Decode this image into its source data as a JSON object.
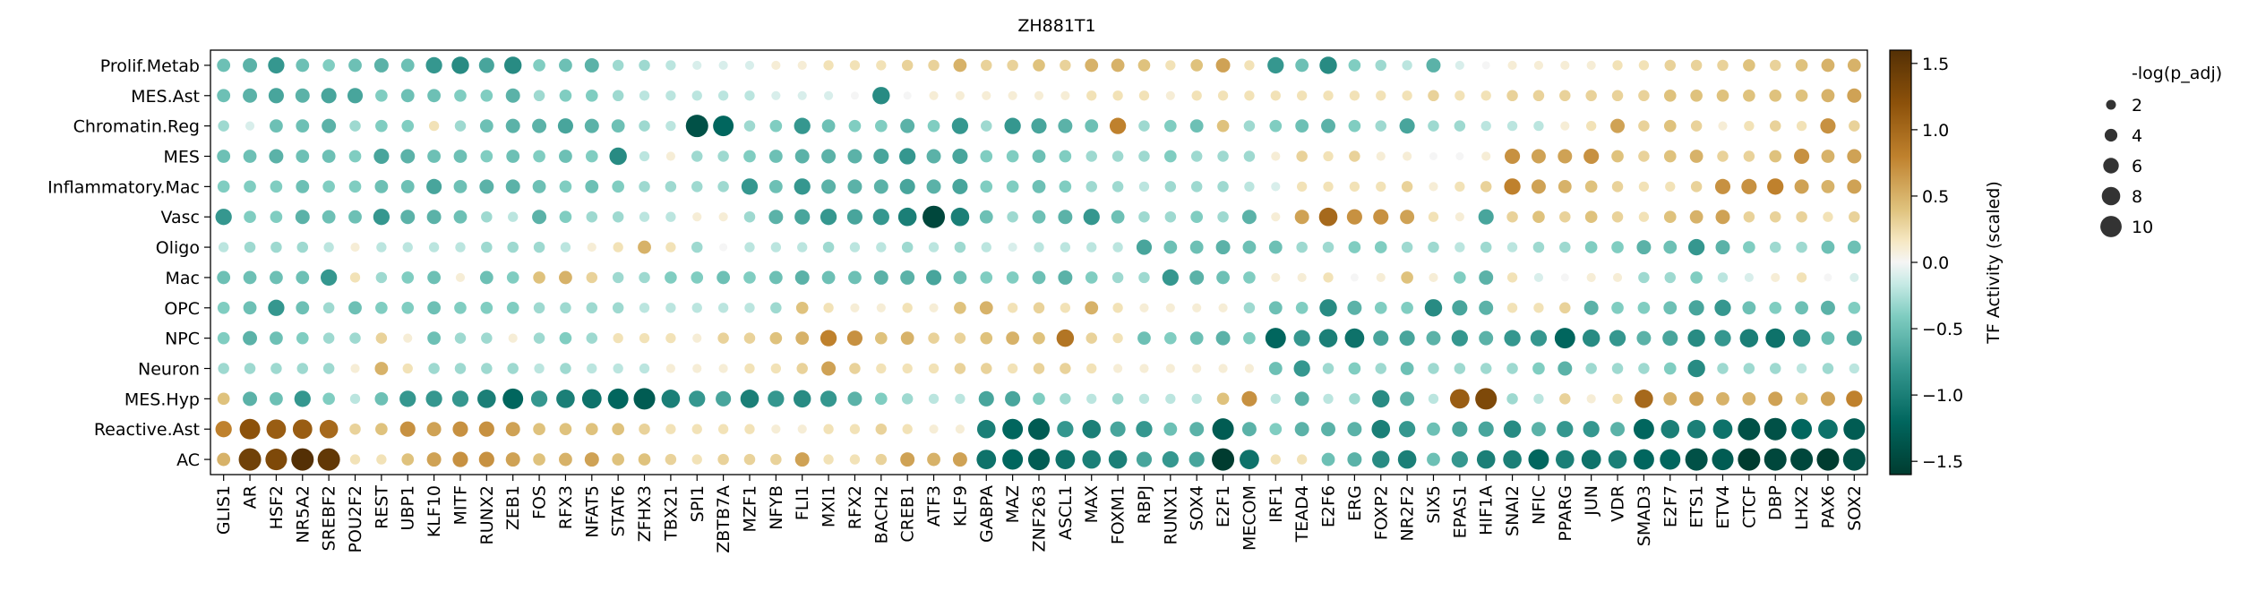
{
  "chart_data": {
    "type": "heatmap",
    "subtype": "dotplot",
    "title": "ZH881T1",
    "rows": [
      "Prolif.Metab",
      "MES.Ast",
      "Chromatin.Reg",
      "MES",
      "Inflammatory.Mac",
      "Vasc",
      "Oligo",
      "Mac",
      "OPC",
      "NPC",
      "Neuron",
      "MES.Hyp",
      "Reactive.Ast",
      "AC"
    ],
    "columns": [
      "GLIS1",
      "AR",
      "HSF2",
      "NR5A2",
      "SREBF2",
      "POU2F2",
      "REST",
      "UBP1",
      "KLF10",
      "MITF",
      "RUNX2",
      "ZEB1",
      "FOS",
      "RFX3",
      "NFAT5",
      "STAT6",
      "ZFHX3",
      "TBX21",
      "SPI1",
      "ZBTB7A",
      "MZF1",
      "NFYB",
      "FLI1",
      "MXI1",
      "RFX2",
      "BACH2",
      "CREB1",
      "ATF3",
      "KLF9",
      "GABPA",
      "MAZ",
      "ZNF263",
      "ASCL1",
      "MAX",
      "FOXM1",
      "RBPJ",
      "RUNX1",
      "SOX4",
      "E2F1",
      "MECOM",
      "IRF1",
      "TEAD4",
      "E2F6",
      "ERG",
      "FOXP2",
      "NR2F2",
      "SIX5",
      "EPAS1",
      "HIF1A",
      "SNAI2",
      "NFIC",
      "PPARG",
      "JUN",
      "VDR",
      "SMAD3",
      "E2F7",
      "ETS1",
      "ETV4",
      "CTCF",
      "DBP",
      "LHX2",
      "PAX6",
      "SOX2"
    ],
    "values": [
      [
        -0.5,
        -0.6,
        -0.8,
        -0.5,
        -0.4,
        -0.5,
        -0.6,
        -0.5,
        -0.8,
        -0.9,
        -0.7,
        -0.9,
        -0.4,
        -0.5,
        -0.6,
        -0.3,
        -0.3,
        -0.2,
        -0.1,
        -0.1,
        -0.1,
        0.1,
        0.1,
        0.2,
        0.2,
        0.2,
        0.3,
        0.3,
        0.5,
        0.3,
        0.3,
        0.4,
        0.3,
        0.5,
        0.5,
        0.4,
        0.2,
        0.4,
        0.6,
        0.2,
        -0.8,
        -0.5,
        -0.9,
        -0.4,
        -0.3,
        -0.2,
        -0.6,
        -0.1,
        0.0,
        0.1,
        0.1,
        0.1,
        0.1,
        0.2,
        0.2,
        0.3,
        0.3,
        0.3,
        0.4,
        0.3,
        0.4,
        0.5,
        0.5
      ],
      [
        -0.5,
        -0.6,
        -0.7,
        -0.6,
        -0.7,
        -0.7,
        -0.4,
        -0.5,
        -0.5,
        -0.4,
        -0.4,
        -0.6,
        -0.3,
        -0.4,
        -0.4,
        -0.3,
        -0.2,
        -0.2,
        -0.2,
        -0.2,
        -0.2,
        -0.1,
        -0.1,
        -0.1,
        0.0,
        -0.9,
        0.0,
        0.1,
        0.1,
        0.1,
        0.1,
        0.1,
        0.1,
        0.2,
        0.2,
        0.2,
        0.1,
        0.2,
        0.2,
        0.2,
        0.2,
        0.2,
        0.2,
        0.2,
        0.2,
        0.2,
        0.3,
        0.2,
        0.2,
        0.3,
        0.3,
        0.3,
        0.3,
        0.3,
        0.3,
        0.4,
        0.4,
        0.4,
        0.4,
        0.4,
        0.4,
        0.5,
        0.6
      ],
      [
        -0.3,
        -0.1,
        -0.5,
        -0.5,
        -0.6,
        -0.3,
        -0.4,
        -0.4,
        0.2,
        -0.3,
        -0.5,
        -0.6,
        -0.6,
        -0.7,
        -0.6,
        -0.5,
        -0.3,
        -0.2,
        -1.4,
        -1.2,
        -0.3,
        -0.4,
        -0.8,
        -0.5,
        -0.4,
        -0.4,
        -0.6,
        -0.4,
        -0.8,
        -0.3,
        -0.8,
        -0.7,
        -0.6,
        -0.5,
        0.8,
        -0.3,
        -0.4,
        -0.5,
        0.4,
        -0.3,
        -0.4,
        -0.5,
        -0.6,
        -0.4,
        -0.3,
        -0.7,
        -0.3,
        -0.3,
        -0.2,
        -0.2,
        -0.2,
        0.1,
        0.2,
        0.6,
        0.3,
        0.4,
        0.3,
        0.1,
        0.2,
        0.3,
        0.2,
        0.7,
        0.3
      ],
      [
        -0.5,
        -0.5,
        -0.6,
        -0.5,
        -0.5,
        -0.4,
        -0.7,
        -0.6,
        -0.5,
        -0.5,
        -0.4,
        -0.5,
        -0.4,
        -0.5,
        -0.4,
        -0.9,
        -0.2,
        0.1,
        -0.3,
        -0.3,
        -0.4,
        -0.5,
        -0.6,
        -0.6,
        -0.6,
        -0.7,
        -0.8,
        -0.6,
        -0.7,
        -0.4,
        -0.4,
        -0.5,
        -0.4,
        -0.3,
        -0.3,
        -0.3,
        -0.4,
        -0.3,
        -0.3,
        -0.3,
        0.1,
        0.3,
        0.2,
        0.3,
        0.1,
        0.1,
        0.0,
        0.0,
        0.1,
        0.7,
        0.6,
        0.6,
        0.7,
        0.4,
        0.3,
        0.4,
        0.5,
        0.3,
        0.3,
        0.4,
        0.7,
        0.5,
        0.6
      ],
      [
        -0.4,
        -0.4,
        -0.4,
        -0.5,
        -0.4,
        -0.4,
        -0.5,
        -0.5,
        -0.7,
        -0.5,
        -0.6,
        -0.6,
        -0.5,
        -0.4,
        -0.5,
        -0.4,
        -0.3,
        -0.3,
        -0.3,
        -0.3,
        -0.8,
        -0.5,
        -0.8,
        -0.6,
        -0.6,
        -0.6,
        -0.7,
        -0.6,
        -0.7,
        -0.4,
        -0.4,
        -0.5,
        -0.4,
        -0.3,
        -0.3,
        -0.2,
        -0.3,
        -0.3,
        -0.3,
        -0.2,
        -0.1,
        0.2,
        0.2,
        0.2,
        0.2,
        0.3,
        0.1,
        0.2,
        0.3,
        0.8,
        0.6,
        0.5,
        0.4,
        0.3,
        0.2,
        0.2,
        0.3,
        0.7,
        0.7,
        0.8,
        0.6,
        0.5,
        0.6
      ],
      [
        -0.8,
        -0.4,
        -0.4,
        -0.6,
        -0.5,
        -0.5,
        -0.8,
        -0.6,
        -0.6,
        -0.5,
        -0.3,
        -0.2,
        -0.6,
        -0.4,
        -0.3,
        -0.3,
        -0.2,
        -0.2,
        0.1,
        0.1,
        -0.3,
        -0.6,
        -0.7,
        -0.8,
        -0.7,
        -0.8,
        -1.0,
        -1.5,
        -1.0,
        -0.5,
        -0.3,
        -0.5,
        -0.6,
        -0.8,
        -0.5,
        -0.3,
        -0.3,
        -0.4,
        -0.3,
        -0.6,
        0.1,
        0.6,
        1.0,
        0.7,
        0.7,
        0.6,
        0.2,
        0.1,
        -0.7,
        0.3,
        0.4,
        0.3,
        0.4,
        0.3,
        0.2,
        0.4,
        0.5,
        0.6,
        0.3,
        0.3,
        0.3,
        0.2,
        0.3
      ],
      [
        -0.2,
        -0.3,
        -0.3,
        -0.3,
        -0.2,
        0.1,
        -0.2,
        -0.2,
        -0.2,
        -0.2,
        -0.3,
        -0.3,
        -0.3,
        -0.2,
        0.1,
        0.2,
        0.5,
        0.2,
        -0.3,
        0.0,
        -0.2,
        -0.2,
        -0.2,
        -0.3,
        -0.2,
        -0.2,
        -0.3,
        -0.2,
        -0.3,
        -0.2,
        -0.1,
        -0.2,
        -0.2,
        -0.2,
        -0.2,
        -0.7,
        -0.5,
        -0.5,
        -0.6,
        -0.5,
        -0.5,
        -0.3,
        -0.3,
        -0.4,
        -0.4,
        -0.3,
        -0.3,
        -0.2,
        -0.3,
        -0.2,
        -0.3,
        -0.3,
        -0.4,
        -0.4,
        -0.6,
        -0.5,
        -0.8,
        -0.6,
        -0.4,
        -0.3,
        -0.3,
        -0.5,
        -0.5
      ],
      [
        -0.5,
        -0.5,
        -0.5,
        -0.5,
        -0.8,
        0.2,
        -0.3,
        -0.4,
        -0.5,
        0.1,
        -0.5,
        -0.4,
        0.4,
        0.5,
        0.3,
        -0.3,
        -0.3,
        -0.4,
        -0.4,
        -0.5,
        -0.4,
        -0.5,
        -0.6,
        -0.5,
        -0.5,
        -0.6,
        -0.6,
        -0.7,
        -0.5,
        -0.4,
        -0.4,
        -0.5,
        -0.6,
        -0.4,
        -0.3,
        -0.3,
        -0.8,
        -0.6,
        -0.5,
        -0.4,
        0.1,
        0.1,
        0.2,
        0.0,
        0.1,
        0.4,
        0.1,
        -0.4,
        -0.6,
        0.2,
        -0.1,
        0.0,
        0.1,
        0.1,
        -0.3,
        -0.3,
        -0.4,
        -0.2,
        -0.1,
        0.1,
        0.2,
        0.0,
        -0.1
      ],
      [
        -0.4,
        -0.5,
        -0.8,
        -0.5,
        -0.3,
        -0.5,
        -0.4,
        -0.4,
        -0.5,
        -0.4,
        -0.4,
        -0.4,
        -0.3,
        -0.3,
        -0.3,
        -0.3,
        -0.2,
        -0.2,
        -0.2,
        -0.2,
        -0.2,
        -0.3,
        0.4,
        0.2,
        0.1,
        0.1,
        0.2,
        0.1,
        0.4,
        0.5,
        0.2,
        0.3,
        0.2,
        0.5,
        0.2,
        0.1,
        0.1,
        0.1,
        0.1,
        -0.3,
        -0.5,
        -0.4,
        -0.9,
        -0.6,
        -0.4,
        -0.4,
        -0.9,
        -0.7,
        -0.6,
        0.2,
        0.2,
        0.3,
        -0.6,
        -0.4,
        -0.4,
        -0.5,
        -0.7,
        -0.8,
        -0.5,
        -0.4,
        -0.5,
        -0.6,
        -0.4
      ],
      [
        -0.4,
        -0.6,
        -0.5,
        -0.4,
        -0.3,
        -0.3,
        0.3,
        0.1,
        -0.5,
        -0.3,
        -0.3,
        0.1,
        -0.3,
        -0.4,
        -0.3,
        0.2,
        0.2,
        0.2,
        0.1,
        0.3,
        0.3,
        0.4,
        0.5,
        0.8,
        0.7,
        0.4,
        0.5,
        0.3,
        0.3,
        0.4,
        0.5,
        0.4,
        0.9,
        0.3,
        0.2,
        -0.5,
        -0.4,
        -0.5,
        -0.6,
        -0.4,
        -1.2,
        -0.8,
        -1.0,
        -1.1,
        -0.7,
        -0.7,
        -0.6,
        -0.8,
        -0.6,
        -0.8,
        -0.8,
        -1.2,
        -0.9,
        -0.8,
        -0.6,
        -0.7,
        -0.9,
        -0.8,
        -1.0,
        -1.1,
        -0.9,
        -0.5,
        -0.7
      ],
      [
        -0.3,
        -0.3,
        -0.3,
        -0.3,
        -0.3,
        0.1,
        0.5,
        0.2,
        -0.3,
        -0.3,
        -0.3,
        -0.3,
        -0.2,
        -0.3,
        -0.2,
        -0.2,
        -0.2,
        0.1,
        0.1,
        0.1,
        0.2,
        0.2,
        0.3,
        0.6,
        0.3,
        0.2,
        0.2,
        0.2,
        0.3,
        0.3,
        0.2,
        0.3,
        0.3,
        0.2,
        0.1,
        0.1,
        0.1,
        0.1,
        0.1,
        0.1,
        -0.5,
        -0.8,
        -0.3,
        -0.4,
        -0.3,
        -0.5,
        -0.3,
        -0.3,
        -0.3,
        -0.3,
        -0.4,
        -0.6,
        -0.3,
        -0.3,
        -0.3,
        -0.4,
        -0.9,
        -0.3,
        -0.3,
        -0.3,
        -0.2,
        -0.3,
        -0.2
      ],
      [
        0.4,
        -0.6,
        -0.5,
        -0.8,
        -0.4,
        -0.2,
        -0.5,
        -0.8,
        -0.8,
        -0.8,
        -1.0,
        -1.2,
        -0.8,
        -1.0,
        -1.1,
        -1.2,
        -1.3,
        -1.0,
        -0.8,
        -0.7,
        -1.0,
        -0.8,
        -0.9,
        -0.8,
        -0.6,
        -0.4,
        -0.3,
        -0.2,
        -0.2,
        -0.7,
        -0.7,
        -0.4,
        -0.3,
        -0.2,
        -0.3,
        -0.2,
        -0.2,
        -0.2,
        0.4,
        0.7,
        -0.2,
        -0.6,
        -0.2,
        -0.3,
        -0.9,
        -0.6,
        -0.2,
        1.1,
        1.3,
        -0.3,
        -0.2,
        0.3,
        0.1,
        0.2,
        1.0,
        0.5,
        0.6,
        0.5,
        0.5,
        0.6,
        0.4,
        0.6,
        0.8
      ],
      [
        0.8,
        1.2,
        1.1,
        1.1,
        1.0,
        0.3,
        0.4,
        0.7,
        0.6,
        0.7,
        0.7,
        0.6,
        0.4,
        0.4,
        0.4,
        0.4,
        0.3,
        0.2,
        0.2,
        0.2,
        0.2,
        0.1,
        0.1,
        0.2,
        0.2,
        0.3,
        0.2,
        0.1,
        0.1,
        -1.0,
        -1.2,
        -1.3,
        -0.8,
        -1.0,
        -0.7,
        -0.8,
        -0.5,
        -0.6,
        -1.3,
        -0.6,
        -0.4,
        -0.6,
        -0.6,
        -0.6,
        -1.0,
        -0.8,
        -0.5,
        -0.7,
        -0.7,
        -0.9,
        -0.6,
        -0.8,
        -0.8,
        -0.6,
        -1.2,
        -1.0,
        -1.0,
        -1.1,
        -1.4,
        -1.4,
        -1.2,
        -1.1,
        -1.3
      ],
      [
        0.5,
        1.4,
        1.3,
        1.6,
        1.5,
        0.2,
        0.2,
        0.4,
        0.6,
        0.7,
        0.7,
        0.6,
        0.4,
        0.5,
        0.6,
        0.4,
        0.4,
        0.3,
        0.2,
        0.3,
        0.3,
        0.3,
        0.6,
        0.2,
        0.2,
        0.3,
        0.6,
        0.5,
        0.6,
        -1.1,
        -1.2,
        -1.3,
        -1.1,
        -1.0,
        -1.0,
        -0.7,
        -0.8,
        -0.7,
        -1.6,
        -1.1,
        0.2,
        0.2,
        -0.5,
        -0.6,
        -0.9,
        -1.0,
        -0.5,
        -0.8,
        -1.0,
        -1.0,
        -1.2,
        -1.0,
        -1.1,
        -1.0,
        -1.2,
        -1.2,
        -1.4,
        -1.3,
        -1.6,
        -1.5,
        -1.5,
        -1.6,
        -1.4
      ]
    ],
    "vmin": -1.6,
    "vmax": 1.6,
    "colorbar": {
      "label": "TF Activity (scaled)",
      "ticks": [
        "1.5",
        "1.0",
        "0.5",
        "0.0",
        "−0.5",
        "−1.0",
        "−1.5"
      ],
      "tick_values": [
        1.5,
        1.0,
        0.5,
        0.0,
        -0.5,
        -1.0,
        -1.5
      ]
    },
    "size_legend": {
      "title": "-log(p_adj)",
      "labels": [
        "2",
        "4",
        "6",
        "8",
        "10"
      ],
      "values": [
        2,
        4,
        6,
        8,
        10
      ]
    },
    "colors": {
      "negative": "#003c30",
      "neutral": "#f5f5f5",
      "positive": "#8c510a"
    },
    "xlabel": "",
    "ylabel": "",
    "grid": false
  }
}
